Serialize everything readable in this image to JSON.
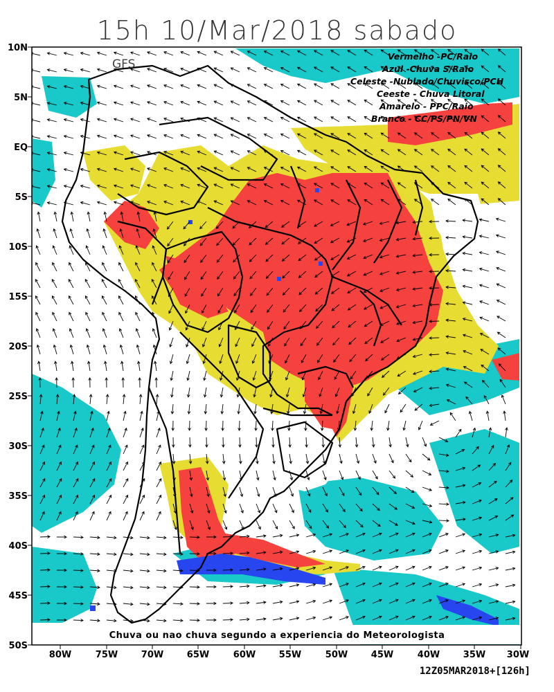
{
  "title": "15h 10/Mar/2018 sabado",
  "model_label": "GFS",
  "legend": [
    "Vermelho  -PC/Raio",
    "Azul -Chuva S/Raio",
    "Celeste -Nublado/Chuvisco/PCH",
    "Ceeste - Chuva Litoral",
    "Amarelo - PPC/Raio",
    "Branco - CC/PS/PN/VN"
  ],
  "caption": "Chuva ou nao chuva segundo a experiencia do Meteorologista",
  "run_info": "12Z05MAR2018+[126h]",
  "axes": {
    "y_labels": [
      "10N",
      "5N",
      "EQ",
      "5S",
      "10S",
      "15S",
      "20S",
      "25S",
      "30S",
      "35S",
      "40S",
      "45S",
      "50S"
    ],
    "x_labels": [
      "80W",
      "75W",
      "70W",
      "65W",
      "60W",
      "55W",
      "50W",
      "45W",
      "40W",
      "35W",
      "30W"
    ]
  },
  "colors": {
    "red": "#f5423f",
    "yellow": "#e6dc32",
    "cyan": "#19c8c8",
    "blue": "#2846f0",
    "white": "#ffffff",
    "border": "#000000",
    "wind_arrow": "#000000"
  }
}
